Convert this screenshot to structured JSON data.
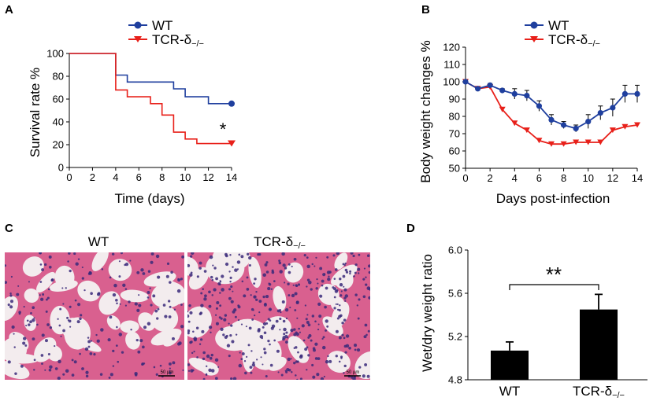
{
  "panels": {
    "A": "A",
    "B": "B",
    "C": "C",
    "D": "D"
  },
  "colors": {
    "wt": "#1f3f9e",
    "ko": "#e8201a",
    "bar": "#000000"
  },
  "micrograph": {
    "left_label": "WT",
    "right_label_main": "TCR-δ",
    "right_label_sub": "−/−",
    "scale_left": "50 µm",
    "scale_right": "50 µm",
    "tissue_bg": "#f3ecee",
    "tissue_pink": "#d9608f",
    "tissue_nuclei": "#3a2a7a"
  },
  "chart_data": [
    {
      "id": "A",
      "type": "line",
      "step": true,
      "title": "",
      "xlabel": "Time  (days)",
      "ylabel": "Survival rate %",
      "xlim": [
        0,
        14
      ],
      "ylim": [
        0,
        100
      ],
      "xticks": [
        "0",
        "2",
        "4",
        "6",
        "8",
        "10",
        "12",
        "14"
      ],
      "yticks": [
        "0",
        "20",
        "40",
        "60",
        "80",
        "100"
      ],
      "series": [
        {
          "name": "WT",
          "name_main": "WT",
          "name_sub": "",
          "color": "#1f3f9e",
          "x": [
            0,
            4,
            4,
            5,
            5,
            9,
            9,
            10,
            10,
            12,
            12,
            14
          ],
          "y": [
            100,
            100,
            81,
            81,
            75,
            75,
            69,
            69,
            62,
            62,
            56,
            56
          ],
          "end_marker": "circle"
        },
        {
          "name": "TCR-δ−/−",
          "name_main": "TCR-δ",
          "name_sub": "−/−",
          "color": "#e8201a",
          "x": [
            0,
            4,
            4,
            5,
            5,
            7,
            7,
            8,
            8,
            9,
            9,
            10,
            10,
            11,
            11,
            14
          ],
          "y": [
            100,
            100,
            68,
            68,
            62,
            62,
            56,
            56,
            46,
            46,
            31,
            31,
            25,
            25,
            21,
            21
          ],
          "end_marker": "triangle-down"
        }
      ],
      "annotation": "*",
      "legend": "top-right"
    },
    {
      "id": "B",
      "type": "line",
      "title": "",
      "xlabel": "Days post-infection",
      "ylabel": "Body weight changes %",
      "xlim": [
        0,
        14
      ],
      "ylim": [
        50,
        120
      ],
      "xticks": [
        "0",
        "2",
        "4",
        "6",
        "8",
        "10",
        "12",
        "14"
      ],
      "yticks": [
        "50",
        "60",
        "70",
        "80",
        "90",
        "100",
        "110",
        "120"
      ],
      "series": [
        {
          "name": "WT",
          "name_main": "WT",
          "name_sub": "",
          "color": "#1f3f9e",
          "marker": "circle",
          "x": [
            0,
            1,
            2,
            3,
            4,
            5,
            6,
            7,
            8,
            9,
            10,
            11,
            12,
            13,
            14
          ],
          "y": [
            100,
            96,
            98,
            95,
            93,
            92,
            86,
            78,
            75,
            73,
            77,
            82,
            85,
            93,
            93
          ],
          "err": [
            1,
            1,
            1,
            1,
            3,
            3,
            3,
            3,
            2,
            2,
            4,
            4,
            5,
            5,
            5
          ]
        },
        {
          "name": "TCR-δ−/−",
          "name_main": "TCR-δ",
          "name_sub": "−/−",
          "color": "#e8201a",
          "marker": "triangle-down",
          "x": [
            0,
            1,
            2,
            3,
            4,
            5,
            6,
            7,
            8,
            9,
            10,
            11,
            12,
            13,
            14
          ],
          "y": [
            100,
            96,
            97,
            84,
            76,
            72,
            66,
            64,
            64,
            65,
            65,
            65,
            72,
            74,
            75
          ],
          "err": [
            1,
            1,
            1,
            1,
            1,
            1,
            1,
            1,
            1,
            1,
            1,
            1,
            1,
            1,
            1
          ]
        }
      ],
      "legend": "top-right"
    },
    {
      "id": "D",
      "type": "bar",
      "title": "",
      "xlabel": "",
      "ylabel": "Wet/dry weight ratio",
      "ylim": [
        4.8,
        6.0
      ],
      "yticks": [
        "4.8",
        "5.2",
        "5.6",
        "6.0"
      ],
      "categories": [
        "WT",
        "TCR-δ−/−"
      ],
      "category_main": [
        "WT",
        "TCR-δ"
      ],
      "category_sub": [
        "",
        "−/−"
      ],
      "values": [
        5.07,
        5.45
      ],
      "err": [
        0.08,
        0.14
      ],
      "annotation": "**"
    }
  ]
}
